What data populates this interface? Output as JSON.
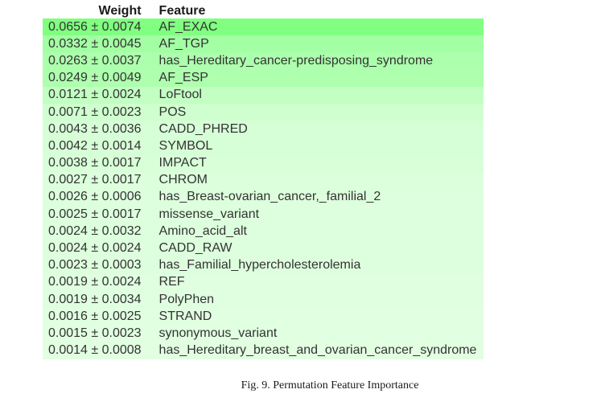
{
  "chart_data": {
    "type": "table",
    "columns": [
      "Weight",
      "Feature"
    ],
    "rows": [
      {
        "weight": "0.0656 ± 0.0074",
        "value": 0.0656,
        "std": 0.0074,
        "feature": "AF_EXAC"
      },
      {
        "weight": "0.0332 ± 0.0045",
        "value": 0.0332,
        "std": 0.0045,
        "feature": "AF_TGP"
      },
      {
        "weight": "0.0263 ± 0.0037",
        "value": 0.0263,
        "std": 0.0037,
        "feature": "has_Hereditary_cancer-predisposing_syndrome"
      },
      {
        "weight": "0.0249 ± 0.0049",
        "value": 0.0249,
        "std": 0.0049,
        "feature": "AF_ESP"
      },
      {
        "weight": "0.0121 ± 0.0024",
        "value": 0.0121,
        "std": 0.0024,
        "feature": "LoFtool"
      },
      {
        "weight": "0.0071 ± 0.0023",
        "value": 0.0071,
        "std": 0.0023,
        "feature": "POS"
      },
      {
        "weight": "0.0043 ± 0.0036",
        "value": 0.0043,
        "std": 0.0036,
        "feature": "CADD_PHRED"
      },
      {
        "weight": "0.0042 ± 0.0014",
        "value": 0.0042,
        "std": 0.0014,
        "feature": "SYMBOL"
      },
      {
        "weight": "0.0038 ± 0.0017",
        "value": 0.0038,
        "std": 0.0017,
        "feature": "IMPACT"
      },
      {
        "weight": "0.0027 ± 0.0017",
        "value": 0.0027,
        "std": 0.0017,
        "feature": "CHROM"
      },
      {
        "weight": "0.0026 ± 0.0006",
        "value": 0.0026,
        "std": 0.0006,
        "feature": "has_Breast-ovarian_cancer,_familial_2"
      },
      {
        "weight": "0.0025 ± 0.0017",
        "value": 0.0025,
        "std": 0.0017,
        "feature": "missense_variant"
      },
      {
        "weight": "0.0024 ± 0.0032",
        "value": 0.0024,
        "std": 0.0032,
        "feature": "Amino_acid_alt"
      },
      {
        "weight": "0.0024 ± 0.0024",
        "value": 0.0024,
        "std": 0.0024,
        "feature": "CADD_RAW"
      },
      {
        "weight": "0.0023 ± 0.0003",
        "value": 0.0023,
        "std": 0.0003,
        "feature": "has_Familial_hypercholesterolemia"
      },
      {
        "weight": "0.0019 ± 0.0024",
        "value": 0.0019,
        "std": 0.0024,
        "feature": "REF"
      },
      {
        "weight": "0.0019 ± 0.0034",
        "value": 0.0019,
        "std": 0.0034,
        "feature": "PolyPhen"
      },
      {
        "weight": "0.0016 ± 0.0025",
        "value": 0.0016,
        "std": 0.0025,
        "feature": "STRAND"
      },
      {
        "weight": "0.0015 ± 0.0023",
        "value": 0.0015,
        "std": 0.0023,
        "feature": "synonymous_variant"
      },
      {
        "weight": "0.0014 ± 0.0008",
        "value": 0.0014,
        "std": 0.0008,
        "feature": "has_Hereditary_breast_and_ovarian_cancer_syndrome"
      }
    ],
    "title": "",
    "caption": "Fig. 9.  Permutation Feature Importance",
    "colors": {
      "highlight_max": "#90ee90",
      "background": "#ffffff",
      "text": "#333333",
      "header_text": "#1a1a1a"
    }
  }
}
